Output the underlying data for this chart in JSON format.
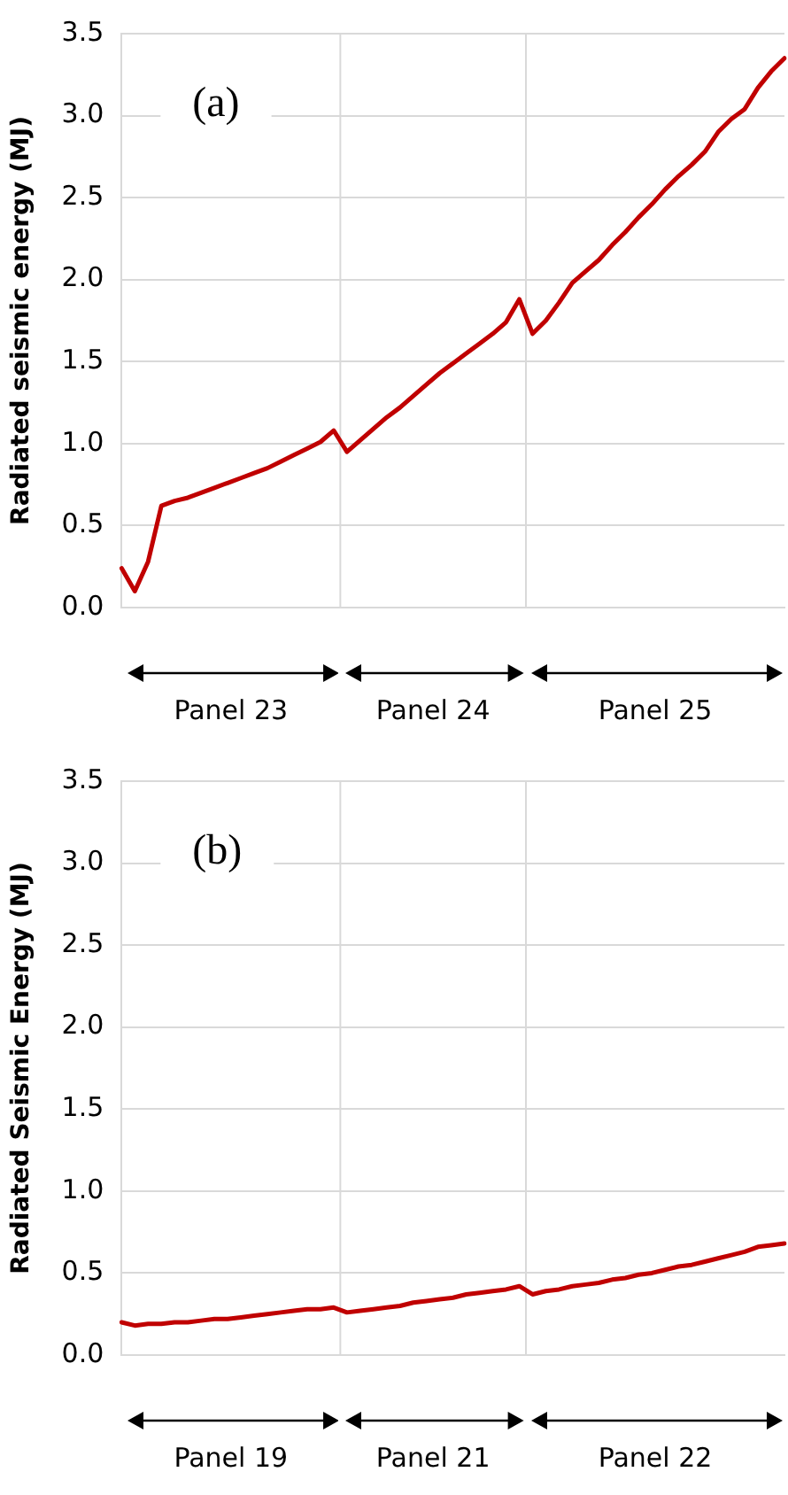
{
  "chart_data": [
    {
      "type": "line",
      "ylabel": "Radiated seismic energy (MJ)",
      "annotations": [
        "(a)",
        "Panel 23",
        "Panel 24",
        "Panel 25"
      ],
      "categories": [
        null,
        null,
        null,
        null,
        null,
        null,
        null,
        null,
        null,
        null,
        null,
        null,
        null,
        null,
        null,
        null,
        null,
        null,
        null,
        null,
        null,
        null,
        null,
        null,
        null,
        null,
        null,
        null,
        null,
        null,
        null,
        null,
        null,
        null,
        null,
        null,
        null,
        null,
        null,
        null,
        null,
        null,
        null,
        null,
        null,
        null,
        null,
        null,
        null,
        null,
        null
      ],
      "series": [
        {
          "color": "#c00000",
          "values": [
            0.24,
            0.1,
            0.28,
            0.62,
            0.65,
            0.67,
            0.7,
            0.73,
            0.76,
            0.79,
            0.82,
            0.85,
            0.89,
            0.93,
            0.97,
            1.01,
            1.08,
            0.95,
            1.02,
            1.09,
            1.16,
            1.22,
            1.29,
            1.36,
            1.43,
            1.49,
            1.55,
            1.61,
            1.67,
            1.74,
            1.88,
            1.67,
            1.75,
            1.86,
            1.98,
            2.05,
            2.12,
            2.21,
            2.29,
            2.38,
            2.46,
            2.55,
            2.63,
            2.7,
            2.78,
            2.9,
            2.98,
            3.04,
            3.17,
            3.27,
            3.35
          ]
        }
      ],
      "ylim": [
        0,
        3.5
      ],
      "yticks": [
        {
          "value": 0,
          "label": "0.0"
        },
        {
          "value": 0.5,
          "label": "0.5"
        },
        {
          "value": 1,
          "label": "1.0"
        },
        {
          "value": 1.5,
          "label": "1.5"
        },
        {
          "value": 2,
          "label": "2.0"
        },
        {
          "value": 2.5,
          "label": "2.5"
        },
        {
          "value": 3,
          "label": "3.0"
        },
        {
          "value": 3.5,
          "label": "3.5"
        }
      ],
      "tick_labels": "y",
      "grid": true,
      "legend": false,
      "marker": "none",
      "line_style": "solid"
    },
    {
      "type": "line",
      "ylabel": "Radiated Seismic Energy (MJ)",
      "annotations": [
        "(b)",
        "Panel 19",
        "Panel 21",
        "Panel 22"
      ],
      "categories": [
        null,
        null,
        null,
        null,
        null,
        null,
        null,
        null,
        null,
        null,
        null,
        null,
        null,
        null,
        null,
        null,
        null,
        null,
        null,
        null,
        null,
        null,
        null,
        null,
        null,
        null,
        null,
        null,
        null,
        null,
        null,
        null,
        null,
        null,
        null,
        null,
        null,
        null,
        null,
        null,
        null,
        null,
        null,
        null,
        null,
        null,
        null,
        null,
        null,
        null,
        null
      ],
      "series": [
        {
          "color": "#c00000",
          "values": [
            0.2,
            0.18,
            0.19,
            0.19,
            0.2,
            0.2,
            0.21,
            0.22,
            0.22,
            0.23,
            0.24,
            0.25,
            0.26,
            0.27,
            0.28,
            0.28,
            0.29,
            0.26,
            0.27,
            0.28,
            0.29,
            0.3,
            0.32,
            0.33,
            0.34,
            0.35,
            0.37,
            0.38,
            0.39,
            0.4,
            0.42,
            0.37,
            0.39,
            0.4,
            0.42,
            0.43,
            0.44,
            0.46,
            0.47,
            0.49,
            0.5,
            0.52,
            0.54,
            0.55,
            0.57,
            0.59,
            0.61,
            0.63,
            0.66,
            0.67,
            0.68
          ]
        }
      ],
      "ylim": [
        0,
        3.5
      ],
      "yticks": [
        {
          "value": 0,
          "label": "0.0"
        },
        {
          "value": 0.5,
          "label": "0.5"
        },
        {
          "value": 1,
          "label": "1.0"
        },
        {
          "value": 1.5,
          "label": "1.5"
        },
        {
          "value": 2,
          "label": "2.0"
        },
        {
          "value": 2.5,
          "label": "2.5"
        },
        {
          "value": 3,
          "label": "3.0"
        },
        {
          "value": 3.5,
          "label": "3.5"
        }
      ],
      "tick_labels": "y",
      "grid": true,
      "legend": false,
      "marker": "none",
      "line_style": "solid"
    }
  ]
}
